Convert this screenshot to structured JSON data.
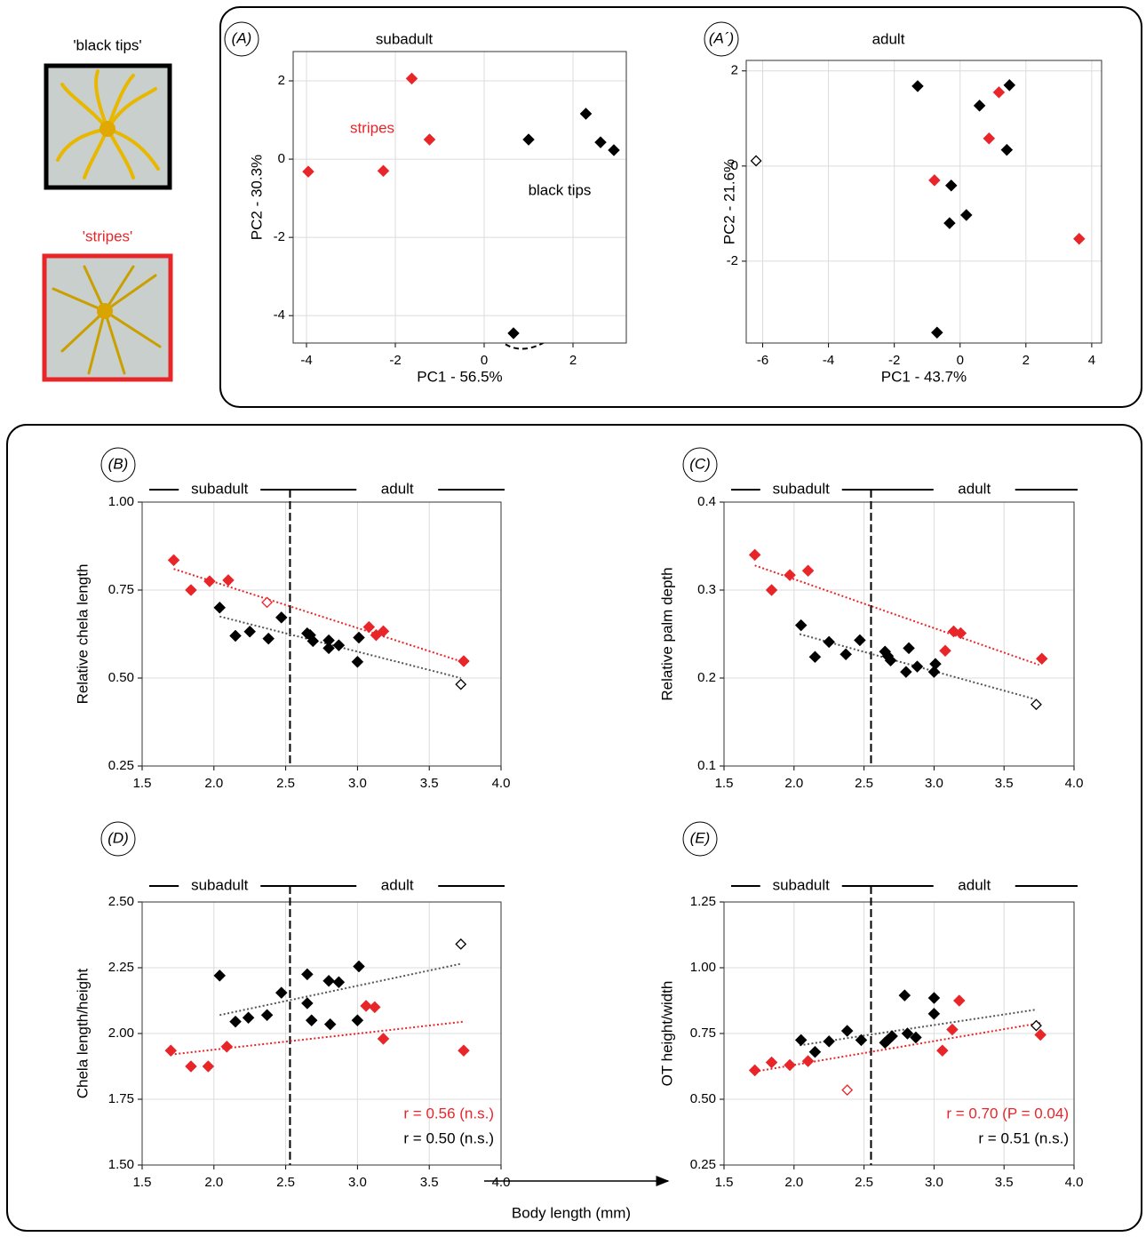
{
  "images": [
    {
      "label": "'black tips'"
    },
    {
      "label": "'stripes'"
    }
  ],
  "footer_label": "Body length (mm)",
  "chart_data": [
    {
      "type": "scatter",
      "panel": "(A)",
      "title": "subadult",
      "x_label": "PC1 - 56.5%",
      "y_label": "PC2 - 30.3%",
      "xlim": [
        -4.3,
        3.2
      ],
      "ylim": [
        -4.7,
        2.75
      ],
      "xticks": [
        -4,
        -2,
        0,
        2
      ],
      "yticks": [
        -4,
        -2,
        0,
        2
      ],
      "grid": true,
      "annotations": [
        {
          "text": "stripes",
          "color": "#e8262a"
        },
        {
          "text": "black tips",
          "color": "#000000"
        }
      ],
      "series": [
        {
          "color": "#e8262a",
          "marker": "filled",
          "x": [
            -3.96,
            -2.27,
            -1.63,
            -1.23
          ],
          "values": [
            -0.32,
            -0.3,
            2.06,
            0.5
          ]
        },
        {
          "color": "#000000",
          "marker": "filled",
          "x": [
            1.0,
            2.29,
            2.62,
            2.92,
            0.66
          ],
          "values": [
            0.5,
            1.16,
            0.43,
            0.23,
            -4.45
          ]
        }
      ]
    },
    {
      "type": "scatter",
      "panel": "(A´)",
      "title": "adult",
      "x_label": "PC1 - 43.7%",
      "y_label": "PC2 - 21.6%",
      "xlim": [
        -6.5,
        4.3
      ],
      "ylim": [
        -3.72,
        2.22
      ],
      "xticks": [
        -6,
        -4,
        -2,
        0,
        2,
        4
      ],
      "yticks": [
        -2,
        0,
        2
      ],
      "grid": true,
      "series": [
        {
          "color": "#e8262a",
          "marker": "filled",
          "x": [
            1.18,
            0.88,
            -0.78,
            3.62
          ],
          "values": [
            1.55,
            0.58,
            -0.3,
            -1.53
          ]
        },
        {
          "color": "#000000",
          "marker": "filled",
          "x": [
            -1.29,
            0.59,
            1.5,
            1.42,
            -0.27,
            0.19,
            -0.32,
            -0.7
          ],
          "values": [
            1.68,
            1.27,
            1.7,
            0.34,
            -0.41,
            -1.03,
            -1.2,
            -3.5
          ]
        },
        {
          "color": "#000000",
          "marker": "open",
          "x": [
            -6.2
          ],
          "values": [
            0.11
          ]
        }
      ]
    },
    {
      "type": "scatter",
      "panel": "(B)",
      "y_label": "Relative chela length",
      "stages": [
        "subadult",
        "adult"
      ],
      "divider": 2.53,
      "xlim": [
        1.5,
        4.0
      ],
      "ylim": [
        0.25,
        1.0
      ],
      "xticks": [
        1.5,
        {
          "value": 2,
          "label": "2.0"
        },
        2.5,
        {
          "value": 3,
          "label": "3.0"
        },
        3.5,
        {
          "value": 4,
          "label": "4.0"
        }
      ],
      "yticks": [
        0.25,
        {
          "value": 0.5,
          "label": "0.50"
        },
        0.75,
        {
          "value": 1,
          "label": "1.00"
        }
      ],
      "grid": true,
      "series": [
        {
          "color": "#e8262a",
          "marker": "filled",
          "x": [
            1.72,
            1.84,
            1.97,
            2.1,
            3.08,
            3.13,
            3.18,
            3.74
          ],
          "values": [
            0.835,
            0.75,
            0.775,
            0.778,
            0.645,
            0.622,
            0.633,
            0.548
          ]
        },
        {
          "color": "#e8262a",
          "marker": "open",
          "x": [
            2.37
          ],
          "values": [
            0.715
          ]
        },
        {
          "color": "#000000",
          "marker": "filled",
          "x": [
            2.04,
            2.15,
            2.25,
            2.38,
            2.47,
            2.65,
            2.67,
            2.69,
            2.8,
            2.8,
            2.87,
            3.01,
            3.0
          ],
          "values": [
            0.7,
            0.62,
            0.632,
            0.612,
            0.672,
            0.627,
            0.622,
            0.605,
            0.607,
            0.585,
            0.593,
            0.615,
            0.546
          ]
        },
        {
          "color": "#000000",
          "marker": "open",
          "x": [
            3.72
          ],
          "values": [
            0.482
          ]
        }
      ],
      "trend_lines": [
        {
          "color": "#e8262a",
          "x": [
            1.72,
            3.74
          ],
          "values": [
            0.81,
            0.545
          ]
        },
        {
          "color": "#555555",
          "x": [
            2.04,
            3.72
          ],
          "values": [
            0.675,
            0.5
          ]
        }
      ]
    },
    {
      "type": "scatter",
      "panel": "(C)",
      "y_label": "Relative palm depth",
      "stages": [
        "subadult",
        "adult"
      ],
      "divider": 2.55,
      "xlim": [
        1.5,
        4.0
      ],
      "ylim": [
        0.1,
        0.4
      ],
      "xticks": [
        1.5,
        {
          "value": 2,
          "label": "2.0"
        },
        2.5,
        {
          "value": 3,
          "label": "3.0"
        },
        3.5,
        {
          "value": 4,
          "label": "4.0"
        }
      ],
      "yticks": [
        0.1,
        0.2,
        0.3,
        0.4
      ],
      "grid": true,
      "series": [
        {
          "color": "#e8262a",
          "marker": "filled",
          "x": [
            1.72,
            1.84,
            1.97,
            2.1,
            3.08,
            3.14,
            3.19,
            3.77
          ],
          "values": [
            0.34,
            0.3,
            0.317,
            0.322,
            0.231,
            0.253,
            0.251,
            0.222
          ]
        },
        {
          "color": "#000000",
          "marker": "filled",
          "x": [
            2.05,
            2.15,
            2.25,
            2.37,
            2.47,
            2.65,
            2.67,
            2.69,
            2.8,
            2.82,
            2.88,
            3.0,
            3.01
          ],
          "values": [
            0.26,
            0.224,
            0.241,
            0.227,
            0.243,
            0.23,
            0.225,
            0.22,
            0.207,
            0.234,
            0.213,
            0.207,
            0.216
          ]
        },
        {
          "color": "#000000",
          "marker": "open",
          "x": [
            3.73
          ],
          "values": [
            0.17
          ]
        }
      ],
      "trend_lines": [
        {
          "color": "#e8262a",
          "x": [
            1.72,
            3.75
          ],
          "values": [
            0.328,
            0.215
          ]
        },
        {
          "color": "#555555",
          "x": [
            2.04,
            3.72
          ],
          "values": [
            0.25,
            0.176
          ]
        }
      ]
    },
    {
      "type": "scatter",
      "panel": "(D)",
      "y_label": "Chela length/height",
      "stages": [
        "subadult",
        "adult"
      ],
      "divider": 2.53,
      "xlim": [
        1.5,
        4.0
      ],
      "ylim": [
        1.5,
        2.5
      ],
      "xticks": [
        1.5,
        {
          "value": 2,
          "label": "2.0"
        },
        2.5,
        {
          "value": 3,
          "label": "3.0"
        },
        3.5,
        {
          "value": 4,
          "label": "4.0"
        }
      ],
      "yticks": [
        {
          "value": 1.5,
          "label": "1.50"
        },
        1.75,
        {
          "value": 2,
          "label": "2.00"
        },
        2.25,
        {
          "value": 2.5,
          "label": "2.50"
        }
      ],
      "grid": true,
      "annotations": [
        {
          "text": "r = 0.56 (n.s.)",
          "color": "#e8262a"
        },
        {
          "text": "r = 0.50 (n.s.)",
          "color": "#000000"
        }
      ],
      "series": [
        {
          "color": "#e8262a",
          "marker": "filled",
          "x": [
            1.7,
            1.84,
            1.96,
            2.09,
            3.06,
            3.12,
            3.18,
            3.74
          ],
          "values": [
            1.935,
            1.875,
            1.875,
            1.95,
            2.105,
            2.1,
            1.98,
            1.935
          ]
        },
        {
          "color": "#000000",
          "marker": "filled",
          "x": [
            2.04,
            2.15,
            2.24,
            2.37,
            2.47,
            2.65,
            2.65,
            2.68,
            2.8,
            2.81,
            2.87,
            3.01,
            3.0
          ],
          "values": [
            2.22,
            2.045,
            2.06,
            2.07,
            2.155,
            2.225,
            2.115,
            2.05,
            2.2,
            2.035,
            2.195,
            2.255,
            2.05
          ]
        },
        {
          "color": "#000000",
          "marker": "open",
          "x": [
            3.72
          ],
          "values": [
            2.34
          ]
        }
      ],
      "trend_lines": [
        {
          "color": "#e8262a",
          "x": [
            1.7,
            3.74
          ],
          "values": [
            1.92,
            2.045
          ]
        },
        {
          "color": "#555555",
          "x": [
            2.04,
            3.72
          ],
          "values": [
            2.07,
            2.265
          ]
        }
      ]
    },
    {
      "type": "scatter",
      "panel": "(E)",
      "y_label": "OT height/width",
      "stages": [
        "subadult",
        "adult"
      ],
      "divider": 2.55,
      "xlim": [
        1.5,
        4.0
      ],
      "ylim": [
        0.25,
        1.25
      ],
      "xticks": [
        1.5,
        {
          "value": 2,
          "label": "2.0"
        },
        2.5,
        {
          "value": 3,
          "label": "3.0"
        },
        3.5,
        {
          "value": 4,
          "label": "4.0"
        }
      ],
      "yticks": [
        0.25,
        {
          "value": 0.5,
          "label": "0.50"
        },
        0.75,
        {
          "value": 1,
          "label": "1.00"
        },
        1.25
      ],
      "grid": true,
      "annotations": [
        {
          "text": "r = 0.70 (P = 0.04)",
          "color": "#e8262a"
        },
        {
          "text": "r = 0.51 (n.s.)",
          "color": "#000000"
        }
      ],
      "series": [
        {
          "color": "#e8262a",
          "marker": "filled",
          "x": [
            1.72,
            1.84,
            1.97,
            2.1,
            3.06,
            3.13,
            3.18,
            3.76
          ],
          "values": [
            0.61,
            0.64,
            0.63,
            0.645,
            0.685,
            0.765,
            0.875,
            0.745
          ]
        },
        {
          "color": "#e8262a",
          "marker": "open",
          "x": [
            2.38
          ],
          "values": [
            0.535
          ]
        },
        {
          "color": "#000000",
          "marker": "filled",
          "x": [
            2.05,
            2.15,
            2.25,
            2.38,
            2.48,
            2.65,
            2.67,
            2.7,
            2.79,
            2.81,
            2.87,
            3.0,
            3.0
          ],
          "values": [
            0.725,
            0.68,
            0.72,
            0.76,
            0.725,
            0.715,
            0.725,
            0.74,
            0.895,
            0.75,
            0.735,
            0.885,
            0.825
          ]
        },
        {
          "color": "#000000",
          "marker": "open",
          "x": [
            3.73
          ],
          "values": [
            0.78
          ]
        }
      ],
      "trend_lines": [
        {
          "color": "#e8262a",
          "x": [
            1.72,
            3.76
          ],
          "values": [
            0.605,
            0.79
          ]
        },
        {
          "color": "#555555",
          "x": [
            2.04,
            3.72
          ],
          "values": [
            0.705,
            0.84
          ]
        }
      ]
    }
  ]
}
